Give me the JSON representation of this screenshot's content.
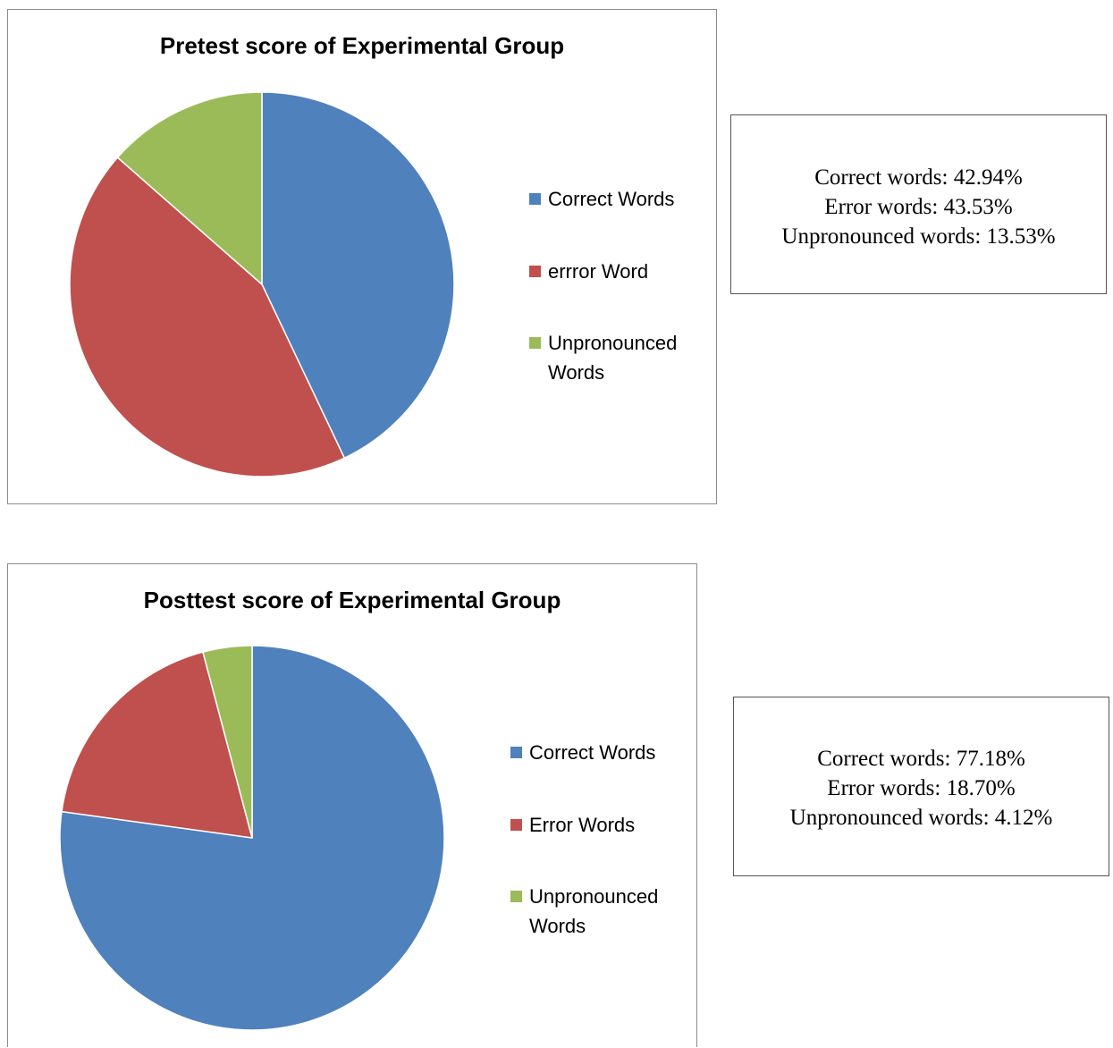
{
  "colors": {
    "correct": "#4f81bd",
    "error": "#c0504d",
    "unpronounced": "#9bbb59"
  },
  "chart_data": [
    {
      "type": "pie",
      "title": "Pretest score of Experimental Group",
      "categories": [
        "Correct Words",
        "errror Word",
        "Unpronounced Words"
      ],
      "values": [
        42.94,
        43.53,
        13.53
      ],
      "legend_position": "right"
    },
    {
      "type": "pie",
      "title": "Posttest score of Experimental Group",
      "categories": [
        "Correct Words",
        "Error Words",
        "Unpronounced Words"
      ],
      "values": [
        77.18,
        18.7,
        4.12
      ],
      "legend_position": "right"
    }
  ],
  "summaries": [
    {
      "lines": [
        "Correct words: 42.94%",
        "Error words: 43.53%",
        "Unpronounced words: 13.53%"
      ]
    },
    {
      "lines": [
        "Correct words: 77.18%",
        "Error words: 18.70%",
        "Unpronounced words: 4.12%"
      ]
    }
  ]
}
